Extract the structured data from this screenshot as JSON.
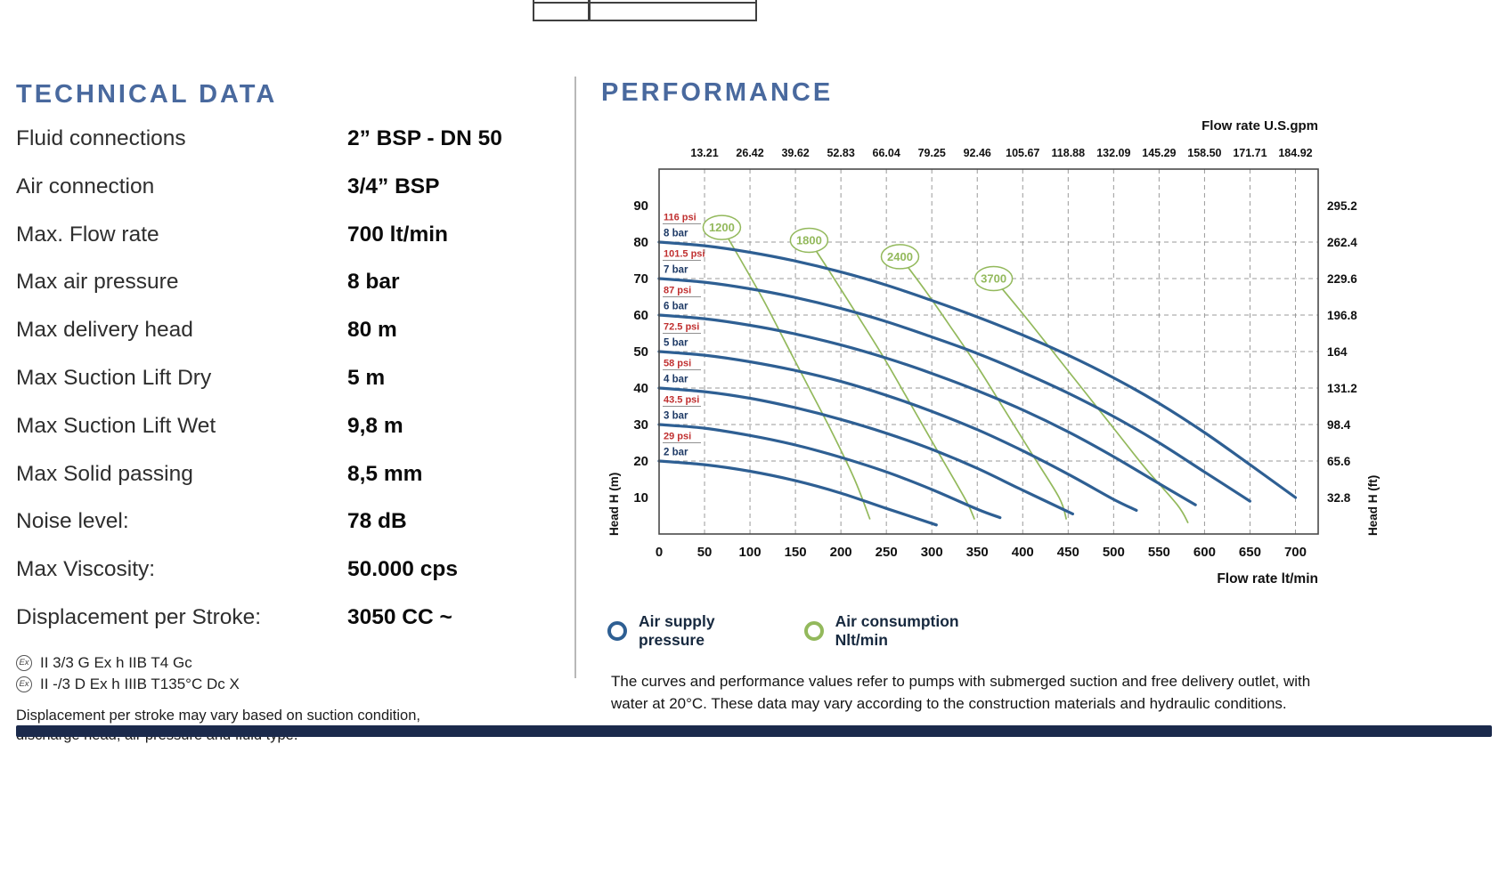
{
  "technical_data": {
    "title": "TECHNICAL DATA",
    "ex_symbol": "Ex",
    "rows": [
      {
        "label": "Fluid connections",
        "value": "2” BSP - DN 50"
      },
      {
        "label": "Air connection",
        "value": "3/4” BSP"
      },
      {
        "label": "Max. Flow rate",
        "value": "700 lt/min"
      },
      {
        "label": "Max air pressure",
        "value": "8 bar"
      },
      {
        "label": "Max delivery head",
        "value": "80 m"
      },
      {
        "label": "Max Suction Lift Dry",
        "value": "5 m"
      },
      {
        "label": "Max Suction Lift Wet",
        "value": "9,8 m"
      },
      {
        "label": "Max Solid passing",
        "value": "8,5 mm"
      },
      {
        "label": "Noise level:",
        "value": "78 dB"
      },
      {
        "label": "Max Viscosity:",
        "value": "50.000 cps"
      },
      {
        "label": "Displacement per Stroke:",
        "value": "3050 CC ~"
      }
    ],
    "atex_lines": [
      {
        "text": "II 3/3 G Ex h IIB T4 Gc"
      },
      {
        "text": "II -/3 D Ex h IIIB T135°C Dc X"
      }
    ],
    "note": "Displacement per stroke may vary based on suction condition, discharge head, air pressure and fluid type."
  },
  "performance": {
    "title": "PERFORMANCE",
    "legend": [
      {
        "marker_color": "#2e5f93",
        "label_line1": "Air supply",
        "label_line2": "pressure"
      },
      {
        "marker_color": "#93b95c",
        "label_line1": "Air consumption",
        "label_line2": "Nlt/min"
      }
    ],
    "note": "The curves and performance values refer to pumps with submerged suction and free delivery outlet, with water at 20°C. These data may vary according to the construction materials and hydraulic conditions."
  },
  "chart_data": {
    "type": "line",
    "x_bottom": {
      "label": "Flow rate lt/min",
      "ticks": [
        0,
        50,
        100,
        150,
        200,
        250,
        300,
        350,
        400,
        450,
        500,
        550,
        600,
        650,
        700
      ],
      "max": 725
    },
    "x_top": {
      "label": "Flow rate U.S.gpm",
      "ticks": [
        "13.21",
        "26.42",
        "39.62",
        "52.83",
        "66.04",
        "79.25",
        "92.46",
        "105.67",
        "118.88",
        "132.09",
        "145.29",
        "158.50",
        "171.71",
        "184.92"
      ]
    },
    "y_left": {
      "label": "Head H (m)",
      "ticks": [
        90,
        80,
        70,
        60,
        50,
        40,
        30,
        20,
        10
      ],
      "max": 100
    },
    "y_right": {
      "label": "Head H (ft)",
      "ticks": [
        "295.2",
        "262.4",
        "229.6",
        "196.8",
        "164",
        "131.2",
        "98.4",
        "65.6",
        "32.8"
      ]
    },
    "grid": {
      "vertical_at": [
        50,
        100,
        150,
        200,
        250,
        300,
        350,
        400,
        450,
        500,
        550,
        600,
        650,
        700
      ],
      "horizontal_at": [
        20,
        30,
        40,
        50,
        60,
        70,
        80
      ]
    },
    "supply_color": "#2e5f93",
    "consumption_color": "#93b95c",
    "psi_color": "#c03030",
    "bar_color": "#1e3a66",
    "supply_series": [
      {
        "bar": "8 bar",
        "psi": "116 psi",
        "points": [
          [
            0,
            80
          ],
          [
            50,
            79
          ],
          [
            100,
            77.2
          ],
          [
            150,
            74.8
          ],
          [
            200,
            71.8
          ],
          [
            250,
            68.2
          ],
          [
            300,
            64
          ],
          [
            350,
            59.5
          ],
          [
            400,
            54.5
          ],
          [
            450,
            49
          ],
          [
            500,
            42.8
          ],
          [
            550,
            35.8
          ],
          [
            600,
            27.8
          ],
          [
            650,
            19
          ],
          [
            700,
            10
          ]
        ]
      },
      {
        "bar": "7 bar",
        "psi": "101.5 psi",
        "points": [
          [
            0,
            70
          ],
          [
            50,
            69
          ],
          [
            100,
            67.2
          ],
          [
            150,
            64.8
          ],
          [
            200,
            61.8
          ],
          [
            250,
            58.2
          ],
          [
            300,
            54
          ],
          [
            350,
            49.5
          ],
          [
            400,
            44.3
          ],
          [
            450,
            38.6
          ],
          [
            500,
            32.2
          ],
          [
            550,
            25
          ],
          [
            600,
            17
          ],
          [
            650,
            9
          ]
        ]
      },
      {
        "bar": "6 bar",
        "psi": "87 psi",
        "points": [
          [
            0,
            60
          ],
          [
            50,
            59
          ],
          [
            100,
            57.2
          ],
          [
            150,
            54.8
          ],
          [
            200,
            51.8
          ],
          [
            250,
            48.2
          ],
          [
            300,
            44
          ],
          [
            350,
            39.3
          ],
          [
            400,
            34
          ],
          [
            450,
            28
          ],
          [
            500,
            21.2
          ],
          [
            550,
            13.8
          ],
          [
            590,
            8
          ]
        ]
      },
      {
        "bar": "5 bar",
        "psi": "72.5 psi",
        "points": [
          [
            0,
            50
          ],
          [
            50,
            49
          ],
          [
            100,
            47.2
          ],
          [
            150,
            44.8
          ],
          [
            200,
            41.8
          ],
          [
            250,
            38
          ],
          [
            300,
            33.6
          ],
          [
            350,
            28.6
          ],
          [
            400,
            22.8
          ],
          [
            450,
            16.4
          ],
          [
            500,
            9.5
          ],
          [
            525,
            6.5
          ]
        ]
      },
      {
        "bar": "4 bar",
        "psi": "58 psi",
        "points": [
          [
            0,
            40
          ],
          [
            50,
            39
          ],
          [
            100,
            37.2
          ],
          [
            150,
            34.6
          ],
          [
            200,
            31.4
          ],
          [
            250,
            27.6
          ],
          [
            300,
            23.2
          ],
          [
            350,
            18
          ],
          [
            400,
            12
          ],
          [
            455,
            5.5
          ]
        ]
      },
      {
        "bar": "3 bar",
        "psi": "43.5 psi",
        "points": [
          [
            0,
            30
          ],
          [
            50,
            29
          ],
          [
            100,
            27
          ],
          [
            150,
            24.4
          ],
          [
            200,
            21
          ],
          [
            250,
            17
          ],
          [
            300,
            12.2
          ],
          [
            350,
            6.8
          ],
          [
            375,
            4.5
          ]
        ]
      },
      {
        "bar": "2 bar",
        "psi": "29 psi",
        "points": [
          [
            0,
            20
          ],
          [
            50,
            19
          ],
          [
            100,
            17.2
          ],
          [
            150,
            14.6
          ],
          [
            200,
            11.2
          ],
          [
            250,
            7
          ],
          [
            305,
            2.5
          ]
        ]
      }
    ],
    "consumption_series": [
      {
        "label": "1200",
        "label_at": [
          69,
          84
        ],
        "points": [
          [
            69,
            84
          ],
          [
            90,
            75
          ],
          [
            115,
            64
          ],
          [
            140,
            52
          ],
          [
            165,
            40
          ],
          [
            190,
            28
          ],
          [
            215,
            15
          ],
          [
            232,
            4
          ]
        ]
      },
      {
        "label": "1800",
        "label_at": [
          165,
          80.5
        ],
        "points": [
          [
            165,
            80.5
          ],
          [
            190,
            71
          ],
          [
            218,
            60
          ],
          [
            248,
            48
          ],
          [
            278,
            35
          ],
          [
            308,
            22
          ],
          [
            338,
            9
          ],
          [
            347,
            4
          ]
        ]
      },
      {
        "label": "2400",
        "label_at": [
          265,
          76
        ],
        "points": [
          [
            265,
            76
          ],
          [
            292,
            67
          ],
          [
            320,
            57
          ],
          [
            350,
            46
          ],
          [
            380,
            34
          ],
          [
            410,
            22
          ],
          [
            440,
            10
          ],
          [
            448,
            4
          ]
        ]
      },
      {
        "label": "3700",
        "label_at": [
          368,
          70
        ],
        "points": [
          [
            368,
            70
          ],
          [
            398,
            61
          ],
          [
            430,
            51
          ],
          [
            465,
            40
          ],
          [
            500,
            29
          ],
          [
            535,
            18
          ],
          [
            570,
            8
          ],
          [
            582,
            3
          ]
        ]
      }
    ]
  }
}
